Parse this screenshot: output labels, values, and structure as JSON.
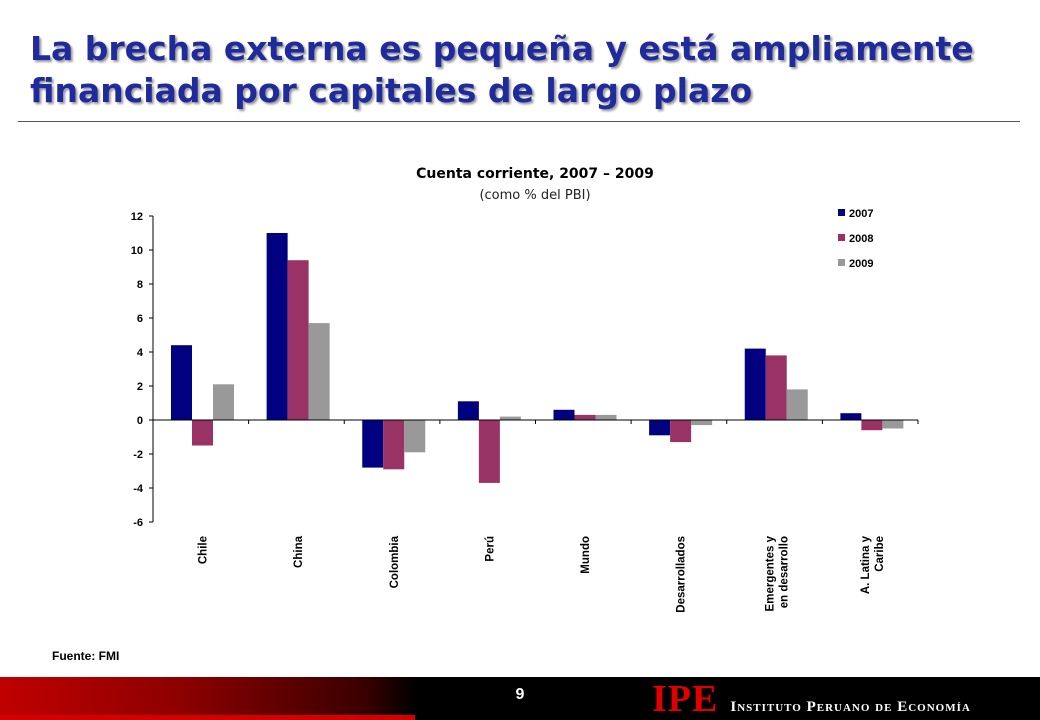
{
  "slide": {
    "title": "La brecha externa es pequeña y está ampliamente financiada por capitales de largo plazo",
    "source": "Fuente: FMI",
    "page_number": "9",
    "logo_mark": "IPE",
    "logo_text": "Instituto Peruano de Economía"
  },
  "colors": {
    "title": "#1f2a9c",
    "series_2007": "#000080",
    "series_2008": "#993366",
    "series_2009": "#999999",
    "footer_red": "#d40000"
  },
  "chart_data": {
    "type": "bar",
    "title": "Cuenta corriente, 2007 – 2009",
    "subtitle": "(como % del PBI)",
    "categories": [
      [
        "Chile"
      ],
      [
        "China"
      ],
      [
        "Colombia"
      ],
      [
        "Perú"
      ],
      [
        "Mundo"
      ],
      [
        "Desarrollados"
      ],
      [
        "Emergentes y",
        "en desarrollo"
      ],
      [
        "A. Latina y",
        "Caribe"
      ]
    ],
    "series": [
      {
        "name": "2007",
        "color": "#000080",
        "values": [
          4.4,
          11.0,
          -2.8,
          1.1,
          0.6,
          -0.9,
          4.2,
          0.4
        ]
      },
      {
        "name": "2008",
        "color": "#993366",
        "values": [
          -1.5,
          9.4,
          -2.9,
          -3.7,
          0.3,
          -1.3,
          3.8,
          -0.6
        ]
      },
      {
        "name": "2009",
        "color": "#999999",
        "values": [
          2.1,
          5.7,
          -1.9,
          0.2,
          0.3,
          -0.3,
          1.8,
          -0.5
        ]
      }
    ],
    "ylim": [
      -6,
      12
    ],
    "yticks": [
      -6,
      -4,
      -2,
      0,
      2,
      4,
      6,
      8,
      10,
      12
    ],
    "legend": "top-right",
    "grid": false
  }
}
